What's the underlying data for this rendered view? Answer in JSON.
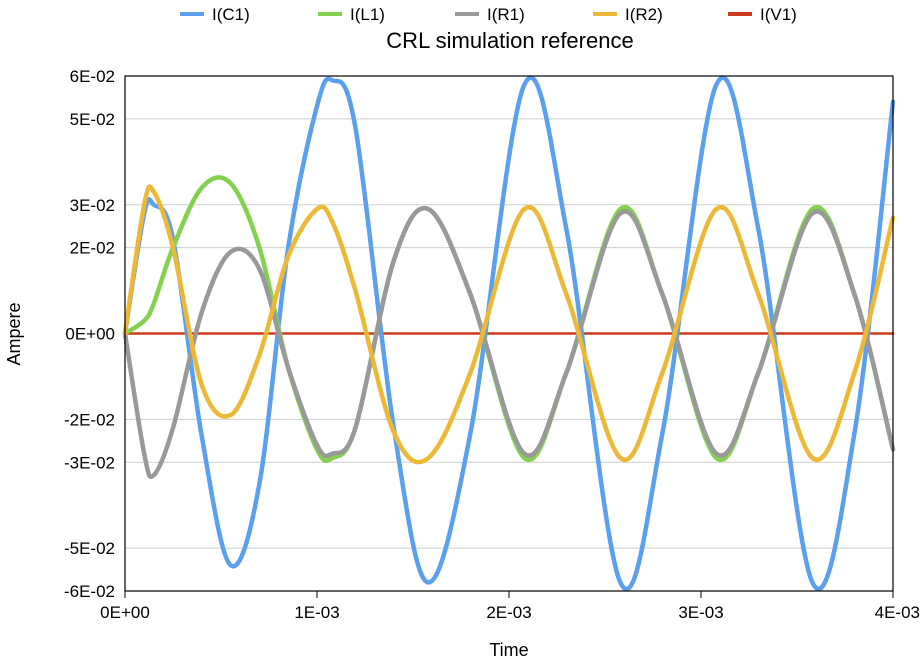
{
  "chart_data": {
    "type": "line",
    "title": "CRL simulation reference",
    "xlabel": "Time",
    "ylabel": "Ampere",
    "xlim": [
      0,
      0.004
    ],
    "ylim": [
      -0.06,
      0.06
    ],
    "x_ticks": [
      {
        "value": 0,
        "label": "0E+00"
      },
      {
        "value": 0.001,
        "label": "1E-03"
      },
      {
        "value": 0.002,
        "label": "2E-03"
      },
      {
        "value": 0.003,
        "label": "3E-03"
      },
      {
        "value": 0.004,
        "label": "4E-03"
      }
    ],
    "y_ticks": [
      {
        "value": 0.06,
        "label": "6E-02"
      },
      {
        "value": 0.05,
        "label": "5E-02"
      },
      {
        "value": 0.03,
        "label": "3E-02"
      },
      {
        "value": 0.02,
        "label": "2E-02"
      },
      {
        "value": 0,
        "label": "0E+00"
      },
      {
        "value": -0.02,
        "label": "-2E-02"
      },
      {
        "value": -0.03,
        "label": "-3E-02"
      },
      {
        "value": -0.05,
        "label": "-5E-02"
      },
      {
        "value": -0.06,
        "label": "-6E-02"
      }
    ],
    "grid": true,
    "legend_position": "top",
    "x": [
      0,
      0.0001,
      0.00015,
      0.00025,
      0.0004,
      0.00055,
      0.0007,
      0.00085,
      0.001,
      0.00108,
      0.0012,
      0.0014,
      0.00158,
      0.0018,
      0.00208,
      0.0023,
      0.00258,
      0.0028,
      0.00308,
      0.0033,
      0.00358,
      0.0038,
      0.004
    ],
    "series": [
      {
        "name": "I(C1)",
        "color": "#5b9ff0",
        "values": [
          0,
          0.028,
          0.03,
          0.022,
          -0.024,
          -0.054,
          -0.035,
          0.02,
          0.053,
          0.059,
          0.048,
          -0.022,
          -0.058,
          -0.023,
          0.058,
          0.024,
          -0.058,
          -0.023,
          0.058,
          0.024,
          -0.058,
          -0.023,
          0.054
        ]
      },
      {
        "name": "I(L1)",
        "color": "#84d04f",
        "values": [
          0,
          0.003,
          0.007,
          0.02,
          0.034,
          0.035,
          0.02,
          -0.008,
          -0.027,
          -0.029,
          -0.022,
          0.017,
          0.029,
          0.009,
          -0.029,
          -0.009,
          0.029,
          0.009,
          -0.029,
          -0.009,
          0.029,
          0.009,
          -0.027
        ]
      },
      {
        "name": "I(R1)",
        "color": "#999999",
        "values": [
          0,
          -0.028,
          -0.033,
          -0.022,
          0.005,
          0.019,
          0.015,
          -0.008,
          -0.026,
          -0.028,
          -0.022,
          0.017,
          0.029,
          0.009,
          -0.028,
          -0.009,
          0.028,
          0.009,
          -0.028,
          -0.009,
          0.028,
          0.009,
          -0.027
        ]
      },
      {
        "name": "I(R2)",
        "color": "#edb836",
        "values": [
          0,
          0.03,
          0.033,
          0.02,
          -0.012,
          -0.019,
          -0.005,
          0.018,
          0.029,
          0.026,
          0.01,
          -0.023,
          -0.029,
          -0.009,
          0.029,
          0.009,
          -0.029,
          -0.009,
          0.029,
          0.009,
          -0.029,
          -0.009,
          0.027
        ]
      },
      {
        "name": "I(V1)",
        "color": "#cc3b1a",
        "values": [
          0,
          0,
          0,
          0,
          0,
          0,
          0,
          0,
          0,
          0,
          0,
          0,
          0,
          0,
          0,
          0,
          0,
          0,
          0,
          0,
          0,
          0,
          0
        ]
      }
    ]
  }
}
